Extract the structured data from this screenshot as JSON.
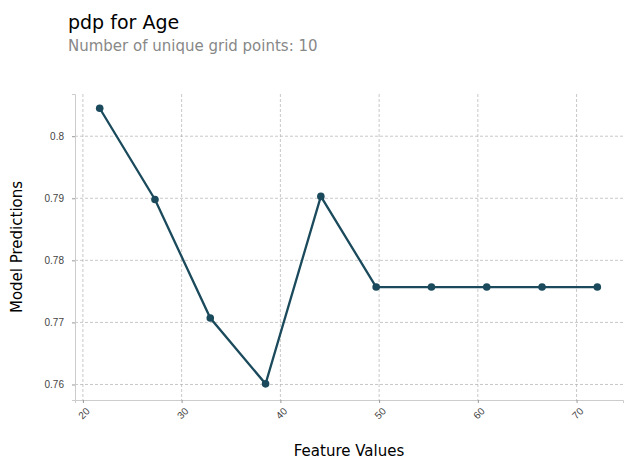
{
  "chart_data": {
    "type": "line",
    "title": "pdp for Age",
    "subtitle": "Number of unique grid points: 10",
    "x_label": "Feature Values",
    "y_label": "Model Predictions",
    "x": [
      21.7,
      27.3,
      32.9,
      38.5,
      44.1,
      49.7,
      55.3,
      60.9,
      66.5,
      72.1
    ],
    "values": [
      0.8045,
      0.7898,
      0.7707,
      0.7601,
      0.7903,
      0.7757,
      0.7757,
      0.7757,
      0.7757,
      0.7757
    ],
    "color": "#1a4a5c",
    "marker": "circle",
    "grid": true,
    "xlim": [
      19.2,
      74.7
    ],
    "xticks": [
      20,
      30,
      40,
      50,
      60,
      70
    ],
    "ylim": [
      0.7575,
      0.8068
    ],
    "yticks": [
      0.76,
      0.77,
      0.78,
      0.79,
      0.8
    ]
  }
}
